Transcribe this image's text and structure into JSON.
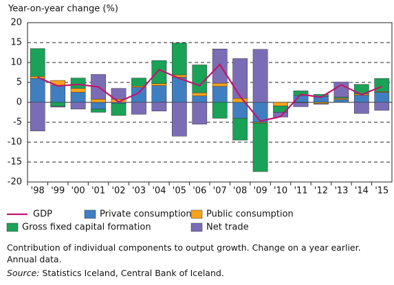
{
  "chart_data": {
    "type": "bar",
    "title": "Year-on-year change (%)",
    "categories": [
      "'98",
      "'99",
      "'00",
      "'01",
      "'02",
      "'03",
      "'04",
      "'05",
      "'06",
      "'07",
      "'08",
      "'09",
      "'10",
      "'11",
      "'12",
      "'13",
      "'14",
      "'15"
    ],
    "series": [
      {
        "name": "GDP",
        "type": "line",
        "color": "#c0146e",
        "values": [
          6.3,
          4.1,
          4.5,
          3.9,
          0.1,
          2.4,
          8.2,
          6.0,
          4.2,
          9.5,
          1.5,
          -4.7,
          -3.6,
          2.0,
          1.3,
          4.4,
          1.9,
          4.0
        ]
      },
      {
        "name": "Private consumption",
        "type": "bar",
        "color": "#3f7fc1",
        "values": [
          6.0,
          4.3,
          2.5,
          -1.7,
          -0.3,
          3.8,
          4.2,
          6.3,
          1.6,
          4.0,
          -4.0,
          -5.0,
          0,
          1.7,
          1.5,
          0.7,
          1.8,
          2.5
        ]
      },
      {
        "name": "Public consumption",
        "type": "bar",
        "color": "#f7a21b",
        "values": [
          0.5,
          1.2,
          1.0,
          0.8,
          0.8,
          0.3,
          0.5,
          0.6,
          0.8,
          0.8,
          1.0,
          -0.2,
          -0.9,
          -0.1,
          -0.3,
          0.3,
          0.3,
          0.2
        ]
      },
      {
        "name": "Gross fixed capital formation",
        "type": "bar",
        "color": "#1aa257",
        "values": [
          7.0,
          -1.0,
          2.6,
          -0.8,
          -3.0,
          2.0,
          5.8,
          8.0,
          7.0,
          -4.0,
          -5.5,
          -12.2,
          -1.6,
          1.2,
          0.5,
          0.3,
          2.4,
          3.3
        ]
      },
      {
        "name": "Net trade",
        "type": "bar",
        "color": "#7b6db5",
        "values": [
          -7.2,
          -0.2,
          -1.7,
          6.2,
          2.7,
          -3.0,
          -2.2,
          -8.5,
          -5.5,
          8.6,
          10.0,
          13.3,
          -1.2,
          -1.0,
          -0.2,
          3.8,
          -2.8,
          -2.0
        ]
      }
    ],
    "ylim": [
      -20,
      20
    ],
    "yticks": [
      -20,
      -15,
      -10,
      -5,
      0,
      5,
      10,
      15,
      20
    ],
    "grid": true,
    "note": "Contribution of individual components to output growth. Change on a year earlier. Annual data.",
    "source_label": "Source:",
    "source": "Statistics Iceland, Central Bank of Iceland."
  }
}
